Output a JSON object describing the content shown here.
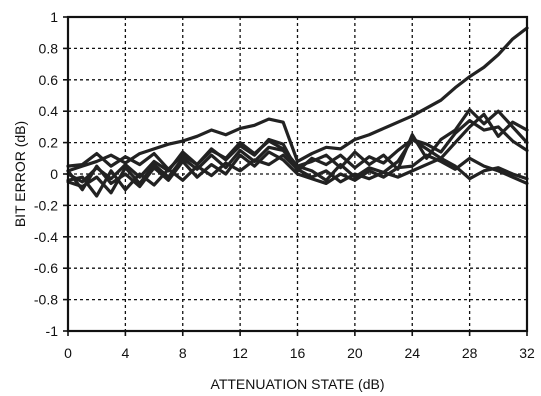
{
  "chart_data": {
    "type": "line",
    "xlabel": "ATTENUATION STATE (dB)",
    "ylabel": "BIT ERROR (dB)",
    "xlim": [
      0,
      32
    ],
    "ylim": [
      -1,
      1
    ],
    "xticks": [
      "0",
      "4",
      "8",
      "12",
      "16",
      "20",
      "24",
      "28",
      "32"
    ],
    "yticks": [
      "1",
      "0.8",
      "0.6",
      "0.4",
      "0.2",
      "0",
      "-0.2",
      "-0.4",
      "-0.6",
      "-0.8",
      "-1"
    ],
    "grid": true,
    "line_color": "#222222",
    "x": [
      0,
      1,
      2,
      3,
      4,
      5,
      6,
      7,
      8,
      9,
      10,
      11,
      12,
      13,
      14,
      15,
      16,
      17,
      18,
      19,
      20,
      21,
      22,
      23,
      24,
      25,
      26,
      27,
      28,
      29,
      30,
      31,
      32
    ],
    "series": [
      {
        "values": [
          0.02,
          0.05,
          0.08,
          0.12,
          0.07,
          0.13,
          0.16,
          0.19,
          0.21,
          0.24,
          0.28,
          0.25,
          0.29,
          0.31,
          0.35,
          0.33,
          0.08,
          0.13,
          0.17,
          0.16,
          0.22,
          0.25,
          0.29,
          0.33,
          0.37,
          0.42,
          0.47,
          0.55,
          0.62,
          0.68,
          0.76,
          0.86,
          0.93
        ]
      },
      {
        "values": [
          0.05,
          0.06,
          0.13,
          0.05,
          0.11,
          0.06,
          0.13,
          0.03,
          0.12,
          0.06,
          0.15,
          0.1,
          0.2,
          0.13,
          0.21,
          0.16,
          0.05,
          0.08,
          0.12,
          0.04,
          0.14,
          0.06,
          0.12,
          0.03,
          0.25,
          0.1,
          0.22,
          0.28,
          0.41,
          0.32,
          0.4,
          0.3,
          0.2
        ]
      },
      {
        "values": [
          0.0,
          -0.05,
          0.04,
          -0.03,
          0.06,
          -0.02,
          0.08,
          0.02,
          0.14,
          0.06,
          0.16,
          0.09,
          0.18,
          0.12,
          0.22,
          0.19,
          0.02,
          0.1,
          0.06,
          0.12,
          0.04,
          0.11,
          0.07,
          0.15,
          0.22,
          0.16,
          0.1,
          0.2,
          0.3,
          0.38,
          0.24,
          0.33,
          0.28
        ]
      },
      {
        "values": [
          -0.05,
          -0.08,
          -0.02,
          -0.12,
          0.04,
          -0.06,
          0.06,
          -0.02,
          0.1,
          0.03,
          0.12,
          0.04,
          0.15,
          0.08,
          0.17,
          0.15,
          0.05,
          0.02,
          -0.04,
          0.06,
          -0.02,
          0.04,
          0.01,
          0.08,
          0.22,
          0.19,
          0.14,
          0.26,
          0.34,
          0.28,
          0.3,
          0.21,
          0.15
        ]
      },
      {
        "values": [
          0.02,
          -0.1,
          0.05,
          -0.06,
          0.0,
          -0.08,
          0.04,
          -0.04,
          0.08,
          -0.02,
          0.06,
          0.0,
          0.12,
          0.05,
          0.14,
          0.09,
          0.0,
          -0.03,
          -0.06,
          0.0,
          -0.04,
          0.02,
          -0.02,
          0.04,
          0.05,
          0.12,
          0.08,
          0.03,
          0.1,
          0.05,
          0.02,
          -0.02,
          -0.06
        ]
      },
      {
        "values": [
          -0.04,
          -0.02,
          -0.14,
          0.02,
          -0.1,
          0.0,
          -0.07,
          0.03,
          -0.04,
          0.05,
          -0.01,
          0.07,
          0.02,
          0.09,
          0.06,
          0.12,
          0.03,
          -0.02,
          0.02,
          -0.05,
          0.0,
          -0.03,
          0.01,
          -0.02,
          0.02,
          0.06,
          0.1,
          0.05,
          -0.03,
          0.02,
          0.04,
          0.0,
          -0.03
        ]
      }
    ]
  }
}
